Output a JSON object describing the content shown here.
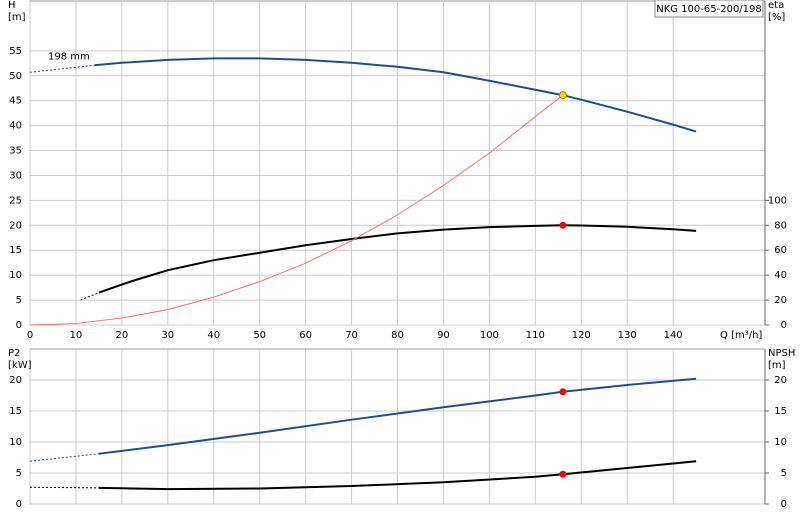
{
  "title": "NKG 100-65-200/198",
  "chart_data": [
    {
      "type": "line",
      "x_label": "Q [m³/h]",
      "y_label": "H",
      "y_unit": "[m]",
      "y2_label": "eta",
      "y2_unit": "[%]",
      "annotation": "198 mm",
      "grid": true,
      "x_tick_labels": true,
      "xlim": [
        0,
        160
      ],
      "xticks": [
        0,
        10,
        20,
        30,
        40,
        50,
        60,
        70,
        80,
        90,
        100,
        110,
        120,
        130,
        140
      ],
      "ylim": [
        0,
        65
      ],
      "yticks": [
        0,
        5,
        10,
        15,
        20,
        25,
        30,
        35,
        40,
        45,
        50,
        55
      ],
      "y2lim": [
        0,
        260
      ],
      "y2ticks": [
        0,
        20,
        40,
        60,
        80,
        100
      ],
      "series": [
        {
          "color": "#1f4e8c",
          "style": "dashed",
          "x": [
            0,
            14
          ],
          "values": [
            50.7,
            52.1
          ]
        },
        {
          "color": "#1f4e8c",
          "style": "solid",
          "x": [
            14,
            20,
            30,
            40,
            50,
            60,
            70,
            80,
            90,
            100,
            110,
            116,
            120,
            130,
            140,
            145
          ],
          "values": [
            52.1,
            52.6,
            53.2,
            53.5,
            53.5,
            53.2,
            52.6,
            51.8,
            50.7,
            49.0,
            47.2,
            46.1,
            45.2,
            42.8,
            40.2,
            38.8
          ]
        },
        {
          "color": "#000000",
          "style": "dashed",
          "axis": "y2",
          "x": [
            11,
            15
          ],
          "values": [
            20,
            26
          ]
        },
        {
          "color": "#000000",
          "style": "solid",
          "axis": "y2",
          "x": [
            15,
            22,
            30,
            40,
            50,
            60,
            70,
            80,
            90,
            100,
            110,
            116,
            120,
            130,
            140,
            145
          ],
          "values": [
            26,
            35,
            44,
            52,
            58,
            64,
            69,
            73.5,
            76.5,
            78.5,
            79.5,
            80,
            79.8,
            78.8,
            76.8,
            75.5
          ]
        },
        {
          "color": "#ff5050",
          "style": "thin",
          "x": [
            0,
            10,
            20,
            30,
            40,
            50,
            60,
            70,
            80,
            90,
            100,
            110,
            116
          ],
          "values": [
            0,
            0.3,
            1.4,
            3.1,
            5.6,
            8.7,
            12.4,
            16.9,
            22.1,
            28,
            34.5,
            41.8,
            46.1
          ]
        }
      ],
      "points": [
        {
          "x": 116,
          "y": 46.1,
          "color": "#ffd700"
        },
        {
          "x": 116,
          "y": 80,
          "axis": "y2",
          "color": "#ff0000"
        }
      ]
    },
    {
      "type": "line",
      "y_label": "P2",
      "y_unit": "[kW]",
      "y2_label": "NPSH",
      "y2_unit": "[m]",
      "grid": true,
      "x_tick_labels": false,
      "xlim": [
        0,
        160
      ],
      "xticks": [
        0,
        10,
        20,
        30,
        40,
        50,
        60,
        70,
        80,
        90,
        100,
        110,
        120,
        130,
        140
      ],
      "ylim": [
        0,
        25
      ],
      "yticks": [
        0,
        5,
        10,
        15,
        20
      ],
      "y2lim": [
        0,
        25
      ],
      "y2ticks": [
        0,
        5,
        10,
        15,
        20
      ],
      "series": [
        {
          "color": "#1f4e8c",
          "style": "dashed",
          "x": [
            0,
            15
          ],
          "values": [
            6.9,
            8.1
          ]
        },
        {
          "color": "#1f4e8c",
          "style": "solid",
          "x": [
            15,
            30,
            50,
            70,
            90,
            110,
            116,
            130,
            145
          ],
          "values": [
            8.1,
            9.5,
            11.5,
            13.6,
            15.6,
            17.5,
            18.1,
            19.2,
            20.2
          ]
        },
        {
          "color": "#000000",
          "style": "dashed",
          "axis": "y2",
          "x": [
            0,
            15
          ],
          "values": [
            2.7,
            2.6
          ]
        },
        {
          "color": "#000000",
          "style": "solid",
          "axis": "y2",
          "x": [
            15,
            30,
            50,
            70,
            90,
            110,
            116,
            130,
            145
          ],
          "values": [
            2.6,
            2.4,
            2.5,
            2.9,
            3.5,
            4.4,
            4.8,
            5.8,
            6.9
          ]
        }
      ],
      "points": [
        {
          "x": 116,
          "y": 18.1,
          "color": "#ff0000"
        },
        {
          "x": 116,
          "y": 4.8,
          "axis": "y2",
          "color": "#ff0000"
        }
      ]
    }
  ]
}
